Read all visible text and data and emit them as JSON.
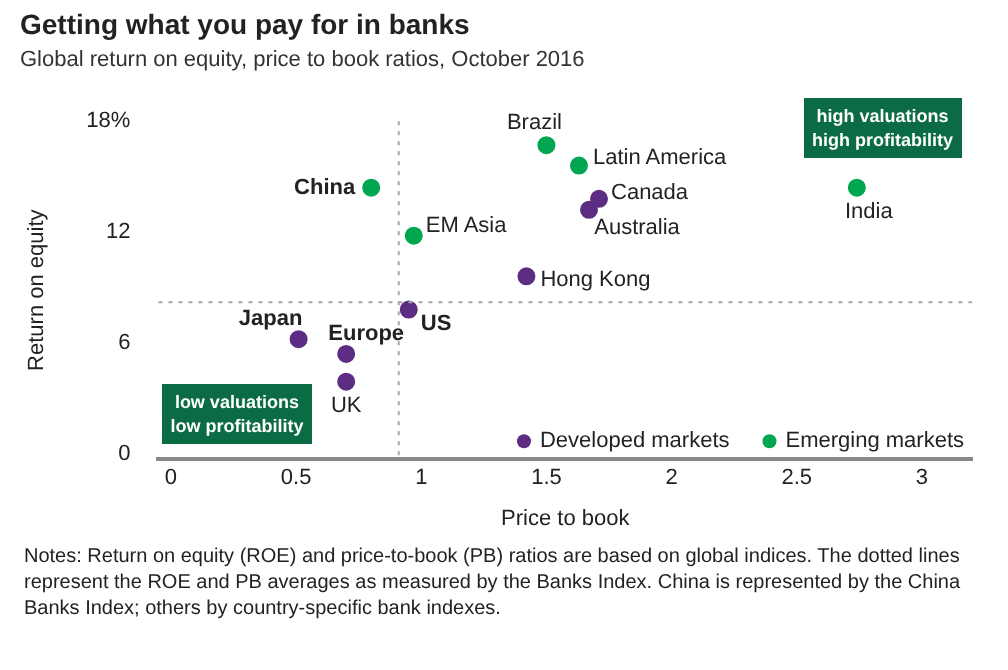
{
  "chart_data": {
    "type": "scatter",
    "title": "Getting what you pay for in banks",
    "subtitle": "Global return on equity, price to book ratios, October 2016",
    "xlabel": "Price to book",
    "ylabel": "Return on equity",
    "xlim": [
      -0.05,
      3.2
    ],
    "xticks": [
      0,
      0.5,
      1,
      1.5,
      2,
      2.5,
      3
    ],
    "ylim": [
      -0.3,
      18
    ],
    "yticks": [
      0,
      6,
      12,
      {
        "value": 18,
        "label": "18%"
      }
    ],
    "grid": false,
    "legend": "bottom right",
    "marker": "circle",
    "series": [
      {
        "name": "Developed markets",
        "color": "#5c2d83",
        "x": [
          1.42,
          0.95,
          0.51,
          0.7,
          0.7,
          1.71,
          1.67
        ],
        "values": [
          9.6,
          7.8,
          6.2,
          5.4,
          3.9,
          13.8,
          13.2
        ]
      },
      {
        "name": "Emerging markets",
        "color": "#00a650",
        "x": [
          0.8,
          0.97,
          1.5,
          1.63,
          2.74
        ],
        "values": [
          14.4,
          11.8,
          16.7,
          15.6,
          14.4
        ]
      }
    ],
    "ref_lines": [
      {
        "axis": "x",
        "value": 0.91,
        "color": "#a6a6a6",
        "line_style": "dotted"
      },
      {
        "axis": "y",
        "value": 8.2,
        "color": "#a6a6a6",
        "line_style": "dotted"
      }
    ],
    "annotations": [
      {
        "text": "Hong Kong",
        "x": 1.42,
        "y": 9.6
      },
      {
        "text": "US",
        "x": 0.95,
        "y": 7.8
      },
      {
        "text": "Japan",
        "x": 0.51,
        "y": 6.2
      },
      {
        "text": "Europe",
        "x": 0.7,
        "y": 5.4
      },
      {
        "text": "UK",
        "x": 0.7,
        "y": 3.9
      },
      {
        "text": "Canada",
        "x": 1.71,
        "y": 13.8
      },
      {
        "text": "Australia",
        "x": 1.67,
        "y": 13.2
      },
      {
        "text": "China",
        "x": 0.8,
        "y": 14.4
      },
      {
        "text": "EM Asia",
        "x": 0.97,
        "y": 11.8
      },
      {
        "text": "Brazil",
        "x": 1.5,
        "y": 16.7
      },
      {
        "text": "Latin America",
        "x": 1.63,
        "y": 15.6
      },
      {
        "text": "India",
        "x": 2.74,
        "y": 14.4
      },
      "low valuations\nlow profitability",
      "high valuations\nhigh profitability",
      "Notes: Return on equity (ROE) and price-to-book (PB) ratios are based on global indices. The dotted lines represent the ROE and PB averages as measured by the Banks Index. China is represented by the China Banks Index; others by country-specific bank indexes."
    ]
  }
}
